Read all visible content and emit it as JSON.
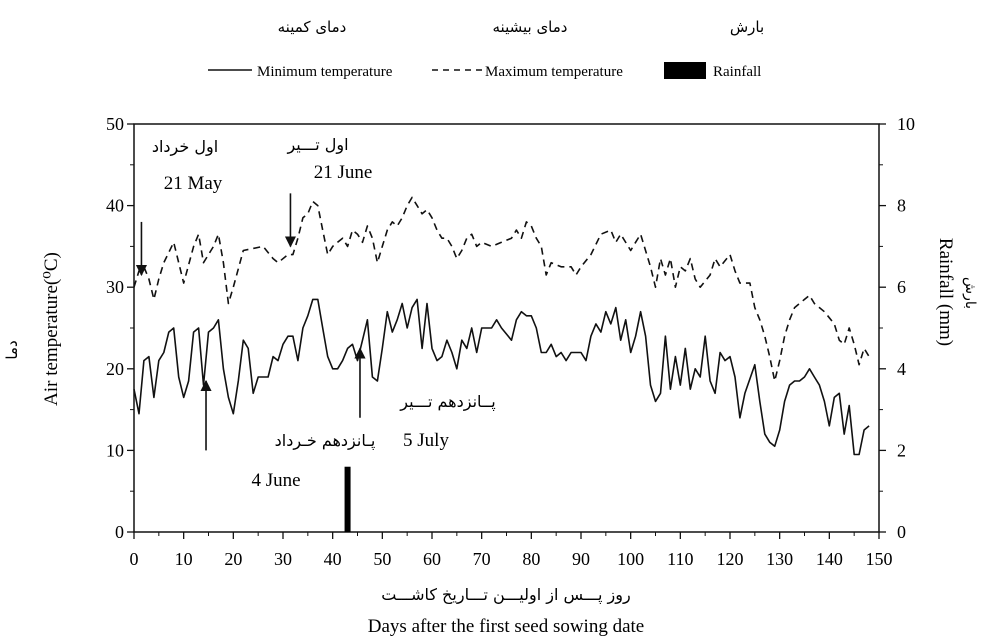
{
  "chart_data": {
    "type": "line",
    "persian_legend": {
      "rainfall": "بارش",
      "max_temp": "دمای بیشینه",
      "min_temp": "دمای کمینه"
    },
    "legend": {
      "placement": "top-center",
      "min_label": "Minimum temperature",
      "max_label": "Maximum temperature",
      "rain_label": "Rainfall"
    },
    "xlabel": "Days after the first seed sowing date",
    "xlabel_fa": "روز پـــس از اولیـــن تـــاریخ کاشـــت",
    "ylabel": "Air temperature(⁰C)",
    "ylabel_fa": "دما",
    "y2label": "Rainfall (mm)",
    "y2label_fa": "بارش",
    "xlim": [
      0,
      150
    ],
    "ylim": [
      0,
      50
    ],
    "y2lim": [
      0,
      10
    ],
    "xticks": [
      0,
      10,
      20,
      30,
      40,
      50,
      60,
      70,
      80,
      90,
      100,
      110,
      120,
      130,
      140,
      150
    ],
    "yticks": [
      0,
      10,
      20,
      30,
      40,
      50
    ],
    "y2ticks": [
      0,
      2,
      4,
      6,
      8,
      10
    ],
    "grid": false,
    "series": [
      {
        "name": "Maximum temperature",
        "style": "dashed",
        "color": "#111111",
        "points": [
          [
            0,
            30
          ],
          [
            1,
            32
          ],
          [
            2,
            32.5
          ],
          [
            3,
            31
          ],
          [
            4,
            28.5
          ],
          [
            5,
            31
          ],
          [
            6,
            33
          ],
          [
            8,
            35.5
          ],
          [
            10,
            30.5
          ],
          [
            12,
            35
          ],
          [
            13,
            36.5
          ],
          [
            14,
            33
          ],
          [
            16,
            35
          ],
          [
            17,
            36.5
          ],
          [
            18,
            33
          ],
          [
            19,
            28
          ],
          [
            20,
            30
          ],
          [
            22,
            34.5
          ],
          [
            26,
            35
          ],
          [
            28,
            33.5
          ],
          [
            29,
            33
          ],
          [
            31,
            34
          ],
          [
            32,
            34
          ],
          [
            33,
            36
          ],
          [
            34,
            38.5
          ],
          [
            35,
            39
          ],
          [
            36,
            40.5
          ],
          [
            37,
            40
          ],
          [
            38,
            37
          ],
          [
            39,
            34
          ],
          [
            40,
            35
          ],
          [
            41,
            35.5
          ],
          [
            42,
            36
          ],
          [
            43,
            35
          ],
          [
            44,
            37
          ],
          [
            45,
            36.5
          ],
          [
            46,
            35.5
          ],
          [
            47,
            37.5
          ],
          [
            48,
            36
          ],
          [
            49,
            33
          ],
          [
            50,
            35
          ],
          [
            51,
            37
          ],
          [
            52,
            38
          ],
          [
            53,
            37.5
          ],
          [
            54,
            38.5
          ],
          [
            55,
            40
          ],
          [
            56,
            41
          ],
          [
            57,
            40
          ],
          [
            58,
            39
          ],
          [
            59,
            39.5
          ],
          [
            60,
            38.5
          ],
          [
            61,
            37
          ],
          [
            62,
            36
          ],
          [
            63,
            36
          ],
          [
            64,
            35
          ],
          [
            65,
            33.5
          ],
          [
            66,
            34.5
          ],
          [
            67,
            36
          ],
          [
            68,
            36.5
          ],
          [
            69,
            35
          ],
          [
            70,
            35.5
          ],
          [
            72,
            35
          ],
          [
            74,
            35.5
          ],
          [
            76,
            36
          ],
          [
            77,
            37
          ],
          [
            78,
            36
          ],
          [
            79,
            38
          ],
          [
            80,
            37.5
          ],
          [
            81,
            36
          ],
          [
            82,
            35
          ],
          [
            83,
            31.5
          ],
          [
            84,
            33
          ],
          [
            86,
            32.5
          ],
          [
            88,
            32.5
          ],
          [
            89,
            31.5
          ],
          [
            90,
            32.5
          ],
          [
            92,
            34
          ],
          [
            94,
            36.5
          ],
          [
            96,
            37
          ],
          [
            97,
            35.5
          ],
          [
            98,
            36.5
          ],
          [
            100,
            34.5
          ],
          [
            101,
            35.5
          ],
          [
            102,
            36.5
          ],
          [
            104,
            32.5
          ],
          [
            105,
            30
          ],
          [
            106,
            33.5
          ],
          [
            107,
            31.5
          ],
          [
            108,
            33.5
          ],
          [
            109,
            30
          ],
          [
            110,
            32.5
          ],
          [
            111,
            32
          ],
          [
            112,
            33.5
          ],
          [
            113,
            31
          ],
          [
            114,
            30
          ],
          [
            116,
            31.5
          ],
          [
            117,
            33.5
          ],
          [
            118,
            32.5
          ],
          [
            120,
            34
          ],
          [
            121,
            32
          ],
          [
            122,
            30.5
          ],
          [
            124,
            30.5
          ],
          [
            125,
            27.5
          ],
          [
            126,
            26
          ],
          [
            127,
            24
          ],
          [
            128,
            21.5
          ],
          [
            129,
            18.5
          ],
          [
            130,
            21
          ],
          [
            131,
            24
          ],
          [
            132,
            26
          ],
          [
            133,
            27.5
          ],
          [
            135,
            28.5
          ],
          [
            136,
            29
          ],
          [
            137,
            28
          ],
          [
            139,
            27
          ],
          [
            141,
            25.5
          ],
          [
            142,
            23.5
          ],
          [
            143,
            23
          ],
          [
            144,
            25
          ],
          [
            145,
            23
          ],
          [
            146,
            20.5
          ],
          [
            147,
            22.5
          ],
          [
            148,
            21.5
          ]
        ]
      },
      {
        "name": "Minimum temperature",
        "style": "solid",
        "color": "#111111",
        "points": [
          [
            0,
            17.5
          ],
          [
            1,
            14.5
          ],
          [
            2,
            21
          ],
          [
            3,
            21.5
          ],
          [
            4,
            16.5
          ],
          [
            5,
            21
          ],
          [
            6,
            22
          ],
          [
            7,
            24.5
          ],
          [
            8,
            25
          ],
          [
            9,
            19
          ],
          [
            10,
            16.5
          ],
          [
            11,
            18.5
          ],
          [
            12,
            24.5
          ],
          [
            13,
            25
          ],
          [
            14,
            18
          ],
          [
            15,
            24.5
          ],
          [
            16,
            25
          ],
          [
            17,
            26
          ],
          [
            18,
            20
          ],
          [
            19,
            16.5
          ],
          [
            20,
            14.5
          ],
          [
            21,
            18.5
          ],
          [
            22,
            23.5
          ],
          [
            23,
            22.5
          ],
          [
            24,
            17
          ],
          [
            25,
            19
          ],
          [
            27,
            19
          ],
          [
            28,
            21.5
          ],
          [
            29,
            21
          ],
          [
            30,
            23
          ],
          [
            31,
            24
          ],
          [
            32,
            24
          ],
          [
            33,
            21
          ],
          [
            34,
            25
          ],
          [
            35,
            26.5
          ],
          [
            36,
            28.5
          ],
          [
            37,
            28.5
          ],
          [
            38,
            25
          ],
          [
            39,
            21.5
          ],
          [
            40,
            20
          ],
          [
            41,
            20
          ],
          [
            42,
            21
          ],
          [
            43,
            22.5
          ],
          [
            44,
            23
          ],
          [
            45,
            21
          ],
          [
            46,
            23.5
          ],
          [
            47,
            26
          ],
          [
            48,
            19
          ],
          [
            49,
            18.5
          ],
          [
            50,
            22.5
          ],
          [
            51,
            27
          ],
          [
            52,
            24.5
          ],
          [
            53,
            26
          ],
          [
            54,
            28
          ],
          [
            55,
            25
          ],
          [
            56,
            27.5
          ],
          [
            57,
            28.5
          ],
          [
            58,
            22.5
          ],
          [
            59,
            28
          ],
          [
            60,
            22.5
          ],
          [
            61,
            21
          ],
          [
            62,
            21.5
          ],
          [
            63,
            23.5
          ],
          [
            64,
            22
          ],
          [
            65,
            20
          ],
          [
            66,
            23.5
          ],
          [
            67,
            22.5
          ],
          [
            68,
            25
          ],
          [
            69,
            22
          ],
          [
            70,
            25
          ],
          [
            72,
            25
          ],
          [
            73,
            26
          ],
          [
            74,
            25
          ],
          [
            76,
            23.5
          ],
          [
            77,
            26
          ],
          [
            78,
            27
          ],
          [
            79,
            26.5
          ],
          [
            80,
            26.5
          ],
          [
            81,
            25
          ],
          [
            82,
            22
          ],
          [
            83,
            22
          ],
          [
            84,
            23
          ],
          [
            85,
            21.5
          ],
          [
            86,
            22
          ],
          [
            87,
            21
          ],
          [
            88,
            22
          ],
          [
            90,
            22
          ],
          [
            91,
            21
          ],
          [
            92,
            24
          ],
          [
            93,
            25.5
          ],
          [
            94,
            24.5
          ],
          [
            95,
            27
          ],
          [
            96,
            25.5
          ],
          [
            97,
            27.5
          ],
          [
            98,
            23.5
          ],
          [
            99,
            26
          ],
          [
            100,
            22
          ],
          [
            101,
            24
          ],
          [
            102,
            27
          ],
          [
            103,
            24
          ],
          [
            104,
            18
          ],
          [
            105,
            16
          ],
          [
            106,
            17
          ],
          [
            107,
            24
          ],
          [
            108,
            17.5
          ],
          [
            109,
            21.5
          ],
          [
            110,
            18
          ],
          [
            111,
            22.5
          ],
          [
            112,
            17.5
          ],
          [
            113,
            20
          ],
          [
            114,
            19
          ],
          [
            115,
            24
          ],
          [
            116,
            18.5
          ],
          [
            117,
            17
          ],
          [
            118,
            22
          ],
          [
            119,
            21
          ],
          [
            120,
            21.5
          ],
          [
            121,
            19
          ],
          [
            122,
            14
          ],
          [
            123,
            17
          ],
          [
            125,
            20.5
          ],
          [
            126,
            16
          ],
          [
            127,
            12
          ],
          [
            128,
            11
          ],
          [
            129,
            10.5
          ],
          [
            130,
            12.5
          ],
          [
            131,
            16
          ],
          [
            132,
            18
          ],
          [
            133,
            18.5
          ],
          [
            134,
            18.5
          ],
          [
            135,
            19
          ],
          [
            136,
            20
          ],
          [
            137,
            19
          ],
          [
            138,
            18
          ],
          [
            139,
            16
          ],
          [
            140,
            13
          ],
          [
            141,
            16.5
          ],
          [
            142,
            17
          ],
          [
            143,
            12
          ],
          [
            144,
            15.5
          ],
          [
            145,
            9.5
          ],
          [
            146,
            9.5
          ],
          [
            147,
            12.5
          ],
          [
            148,
            13
          ]
        ]
      },
      {
        "name": "Rainfall",
        "style": "bar",
        "axis": "right",
        "color": "#000000",
        "points": [
          [
            43,
            1.6
          ]
        ]
      }
    ],
    "annotations": [
      {
        "fa": "اول خرداد",
        "en": "21 May",
        "arrow": {
          "from": [
            1.5,
            38.0
          ],
          "to": [
            1.5,
            31.5
          ]
        }
      },
      {
        "fa": "اول تـــیر",
        "en": "21 June",
        "arrow": {
          "from": [
            31.5,
            41.5
          ],
          "to": [
            31.5,
            35.0
          ]
        }
      },
      {
        "fa": "پـانزدهم خـرداد",
        "en": "4 June",
        "arrow": {
          "from": [
            14.5,
            10.0
          ],
          "to": [
            14.5,
            18.5
          ]
        }
      },
      {
        "fa": "پــانزدهم تـــیر",
        "en": "5 July",
        "arrow": {
          "from": [
            45.5,
            14.0
          ],
          "to": [
            45.5,
            22.5
          ]
        }
      }
    ]
  }
}
